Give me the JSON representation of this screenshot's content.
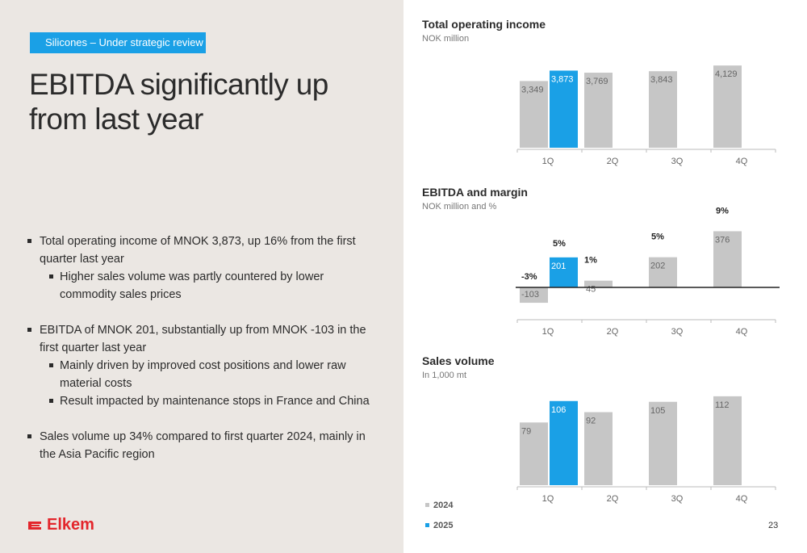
{
  "slide": {
    "tag": "Silicones – Under strategic review",
    "headline": "EBITDA significantly up from last year",
    "page_number": "23",
    "brand": "Elkem"
  },
  "bullets": {
    "b1": "Total operating income of MNOK 3,873, up 16% from the first quarter last year",
    "b1_1": "Higher sales volume was partly countered by lower commodity sales prices",
    "b2": "EBITDA of MNOK 201, substantially up from MNOK -103 in the first quarter last year",
    "b2_1": "Mainly driven by improved cost positions and lower raw material costs",
    "b2_2": "Result impacted by maintenance stops in France and China",
    "b3": "Sales volume up 34% compared to first quarter 2024, mainly in the Asia Pacific region"
  },
  "colors": {
    "series_2024": "#c6c6c6",
    "series_2025": "#1aa0e6",
    "brand_red": "#e3262c"
  },
  "legend": {
    "s2024": "2024",
    "s2025": "2025"
  },
  "chart_data": [
    {
      "type": "bar",
      "title": "Total operating income",
      "subtitle": "NOK million",
      "categories": [
        "1Q",
        "2Q",
        "3Q",
        "4Q"
      ],
      "series": [
        {
          "name": "2024",
          "values": [
            3349,
            3769,
            3843,
            4129
          ],
          "labels": [
            "3,349",
            "3,769",
            "3,843",
            "4,129"
          ]
        },
        {
          "name": "2025",
          "values": [
            3873,
            null,
            null,
            null
          ],
          "labels": [
            "3,873",
            "",
            "",
            ""
          ]
        }
      ],
      "ylim": [
        0,
        4500
      ]
    },
    {
      "type": "bar",
      "title": "EBITDA and margin",
      "subtitle": "NOK million and %",
      "categories": [
        "1Q",
        "2Q",
        "3Q",
        "4Q"
      ],
      "series": [
        {
          "name": "2024",
          "values": [
            -103,
            45,
            202,
            376
          ],
          "labels": [
            "-103",
            "45",
            "202",
            "376"
          ],
          "margins": [
            "-3%",
            "1%",
            "5%",
            "9%"
          ]
        },
        {
          "name": "2025",
          "values": [
            201,
            null,
            null,
            null
          ],
          "labels": [
            "201",
            "",
            "",
            ""
          ],
          "margins": [
            "5%",
            "",
            "",
            ""
          ]
        }
      ],
      "ylim": [
        -120,
        400
      ]
    },
    {
      "type": "bar",
      "title": "Sales volume",
      "subtitle": "In 1,000 mt",
      "categories": [
        "1Q",
        "2Q",
        "3Q",
        "4Q"
      ],
      "series": [
        {
          "name": "2024",
          "values": [
            79,
            92,
            105,
            112
          ],
          "labels": [
            "79",
            "92",
            "105",
            "112"
          ]
        },
        {
          "name": "2025",
          "values": [
            106,
            null,
            null,
            null
          ],
          "labels": [
            "106",
            "",
            "",
            ""
          ]
        }
      ],
      "ylim": [
        0,
        120
      ]
    }
  ]
}
